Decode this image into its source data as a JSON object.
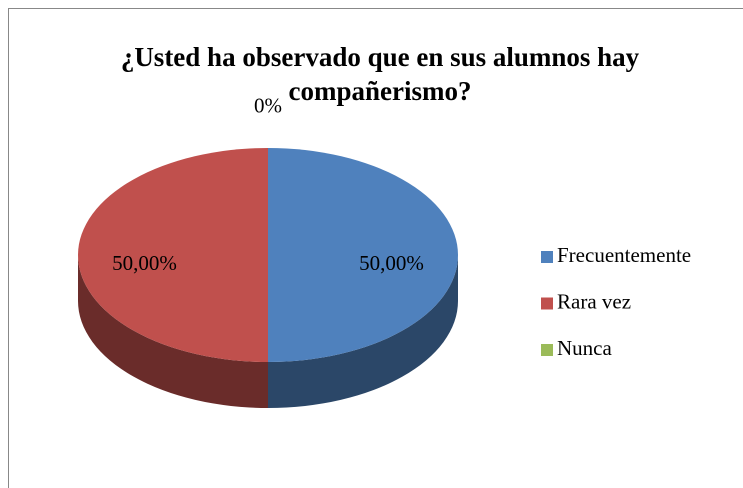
{
  "chart_data": {
    "type": "pie",
    "title": "¿Usted ha observado que en sus alumnos hay compañerismo?",
    "categories": [
      "Frecuentemente",
      "Rara vez",
      "Nunca"
    ],
    "values": [
      50,
      50,
      0
    ],
    "value_labels": [
      "50,00%",
      "50,00%",
      "0%"
    ],
    "colors": [
      "#4f81bd",
      "#c0504d",
      "#9bbb59"
    ],
    "legend": "right"
  }
}
